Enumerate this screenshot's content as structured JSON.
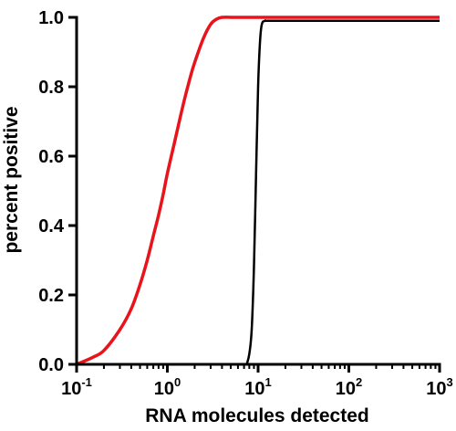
{
  "chart_data": {
    "type": "line",
    "xlabel": "RNA molecules detected",
    "ylabel": "percent positive",
    "xscale": "log",
    "xlim": [
      0.1,
      1000
    ],
    "ylim": [
      0,
      1.0
    ],
    "x_ticks": [
      {
        "value": 0.1,
        "base": "10",
        "exp": "-1"
      },
      {
        "value": 1,
        "base": "10",
        "exp": "0"
      },
      {
        "value": 10,
        "base": "10",
        "exp": "1"
      },
      {
        "value": 100,
        "base": "10",
        "exp": "2"
      },
      {
        "value": 1000,
        "base": "10",
        "exp": "3"
      }
    ],
    "y_ticks": [
      "0.0",
      "0.2",
      "0.4",
      "0.6",
      "0.8",
      "1.0"
    ],
    "grid": false,
    "series": [
      {
        "color": "#e8141c",
        "x": [
          0.1,
          0.15,
          0.2,
          0.3,
          0.4,
          0.5,
          0.6,
          0.7,
          0.8,
          0.9,
          1,
          1.2,
          1.5,
          1.8,
          2,
          2.5,
          3,
          3.5,
          4,
          5,
          6,
          8,
          10,
          100,
          1000
        ],
        "y": [
          0.0,
          0.02,
          0.04,
          0.1,
          0.16,
          0.23,
          0.3,
          0.37,
          0.43,
          0.49,
          0.55,
          0.64,
          0.75,
          0.83,
          0.87,
          0.94,
          0.98,
          0.995,
          1.0,
          1.0,
          1.0,
          1.0,
          1.0,
          1.0,
          1.0
        ]
      },
      {
        "color": "#000000",
        "x": [
          7.5,
          8.0,
          8.5,
          9.0,
          9.5,
          10.0,
          10.5,
          11.0,
          12,
          15,
          100,
          1000
        ],
        "y": [
          0.0,
          0.03,
          0.1,
          0.28,
          0.55,
          0.8,
          0.93,
          0.98,
          0.99,
          0.99,
          0.99,
          0.99
        ]
      }
    ]
  }
}
